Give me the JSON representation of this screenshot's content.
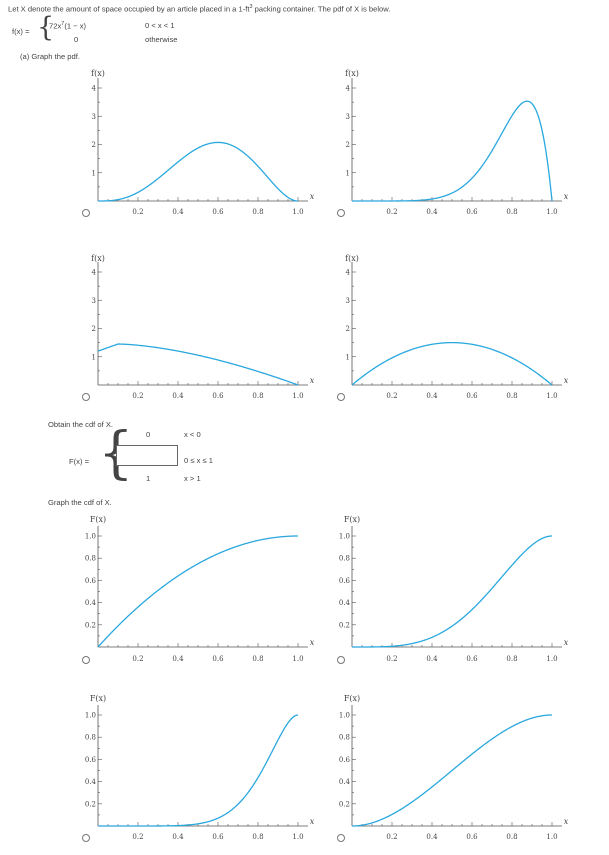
{
  "problem": {
    "intro": "Let X denote the amount of space occupied by an article placed in a 1-ft",
    "intro_sup": "3",
    "intro_tail": " packing container. The pdf of X is below.",
    "pdf_lhs": "f(x) =",
    "pdf_case1": "72x",
    "pdf_case1_sup": "7",
    "pdf_case1_tail": "(1 − x)",
    "pdf_case1_cond": "0 < x < 1",
    "pdf_case2": "0",
    "pdf_case2_cond": "otherwise"
  },
  "part_a": {
    "label": "(a) Graph the pdf."
  },
  "cdf": {
    "label": "Obtain the cdf of X.",
    "lhs": "F(x) =",
    "case1_val": "0",
    "case1_cond": "x < 0",
    "case2_value": "",
    "case2_cond": "0 ≤ x ≤ 1",
    "case3_val": "1",
    "case3_cond": "x > 1"
  },
  "graph_cdf": {
    "label": "Graph the cdf of X."
  },
  "colors": {
    "curve": "#29a8df",
    "axis": "#555555"
  },
  "pdf_axes": {
    "ylabel": "f(x)",
    "xlabel": "x",
    "origin": "0",
    "xticks": [
      "0.2",
      "0.4",
      "0.6",
      "0.8",
      "1.0"
    ],
    "yticks": [
      "1",
      "2",
      "3",
      "4"
    ]
  },
  "cdf_axes": {
    "ylabel": "F(x)",
    "xlabel": "x",
    "origin": "0",
    "xticks": [
      "0.2",
      "0.4",
      "0.6",
      "0.8",
      "1.0"
    ],
    "yticks": [
      "0.2",
      "0.4",
      "0.6",
      "0.8",
      "1.0"
    ]
  },
  "chart_data": [
    {
      "type": "line",
      "group": "pdf",
      "option": 1,
      "xlim": [
        0,
        1
      ],
      "ylim": [
        0,
        4
      ],
      "function": "60x^3(1-x)^2",
      "peak": [
        0.6,
        2.07
      ]
    },
    {
      "type": "line",
      "group": "pdf",
      "option": 2,
      "xlim": [
        0,
        1
      ],
      "ylim": [
        0,
        4
      ],
      "function": "72x^7(1-x)",
      "peak": [
        0.875,
        3.68
      ]
    },
    {
      "type": "line",
      "group": "pdf",
      "option": 3,
      "xlim": [
        0,
        1
      ],
      "ylim": [
        0,
        4
      ],
      "function": "1.5-1.5x^2 (approx)",
      "peak": [
        0.1,
        1.45
      ]
    },
    {
      "type": "line",
      "group": "pdf",
      "option": 4,
      "xlim": [
        0,
        1
      ],
      "ylim": [
        0,
        4
      ],
      "function": "6x(1-x)",
      "peak": [
        0.5,
        1.5
      ]
    },
    {
      "type": "line",
      "group": "cdf",
      "option": 1,
      "xlim": [
        0,
        1
      ],
      "ylim": [
        0,
        1
      ],
      "function": "1-(1-x)^2"
    },
    {
      "type": "line",
      "group": "cdf",
      "option": 2,
      "xlim": [
        0,
        1
      ],
      "ylim": [
        0,
        1
      ],
      "function": "x^4(5-4x)"
    },
    {
      "type": "line",
      "group": "cdf",
      "option": 3,
      "xlim": [
        0,
        1
      ],
      "ylim": [
        0,
        1
      ],
      "function": "9x^8-8x^9"
    },
    {
      "type": "line",
      "group": "cdf",
      "option": 4,
      "xlim": [
        0,
        1
      ],
      "ylim": [
        0,
        1
      ],
      "function": "x^2(3-2x)"
    }
  ]
}
